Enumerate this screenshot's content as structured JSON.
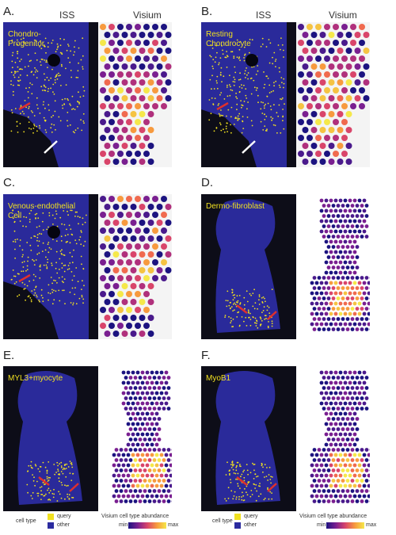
{
  "column_headers": {
    "iss": "ISS",
    "visium": "Visium"
  },
  "panels": [
    {
      "letter": "A.",
      "cell_label": "Chondro-\nProgenitor",
      "show_headers": true
    },
    {
      "letter": "B.",
      "cell_label": "Resting\nChondrocyte",
      "show_headers": true
    },
    {
      "letter": "C.",
      "cell_label": "Venous-endothelial\nCell",
      "show_headers": false
    },
    {
      "letter": "D.",
      "cell_label": "Dermo-fibroblast",
      "show_headers": false
    },
    {
      "letter": "E.",
      "cell_label": "MYL3+myocyte",
      "show_headers": false
    },
    {
      "letter": "F.",
      "cell_label": "MyoB1",
      "show_headers": false
    }
  ],
  "legend": {
    "cell_type": {
      "title": "cell type",
      "query": "query",
      "other": "other"
    },
    "abundance": {
      "title": "Visium cell type abundance",
      "min": "min",
      "max": "max"
    }
  },
  "colors": {
    "iss_background": "#0d0d18",
    "tissue_blue": "#2a2a9a",
    "query_yellow": "#f0e020",
    "other_blue": "#2c2ca0",
    "arrow_red": "#e0302c",
    "arrow_white": "#ffffff",
    "visium_bg": "#f4f4f4"
  }
}
